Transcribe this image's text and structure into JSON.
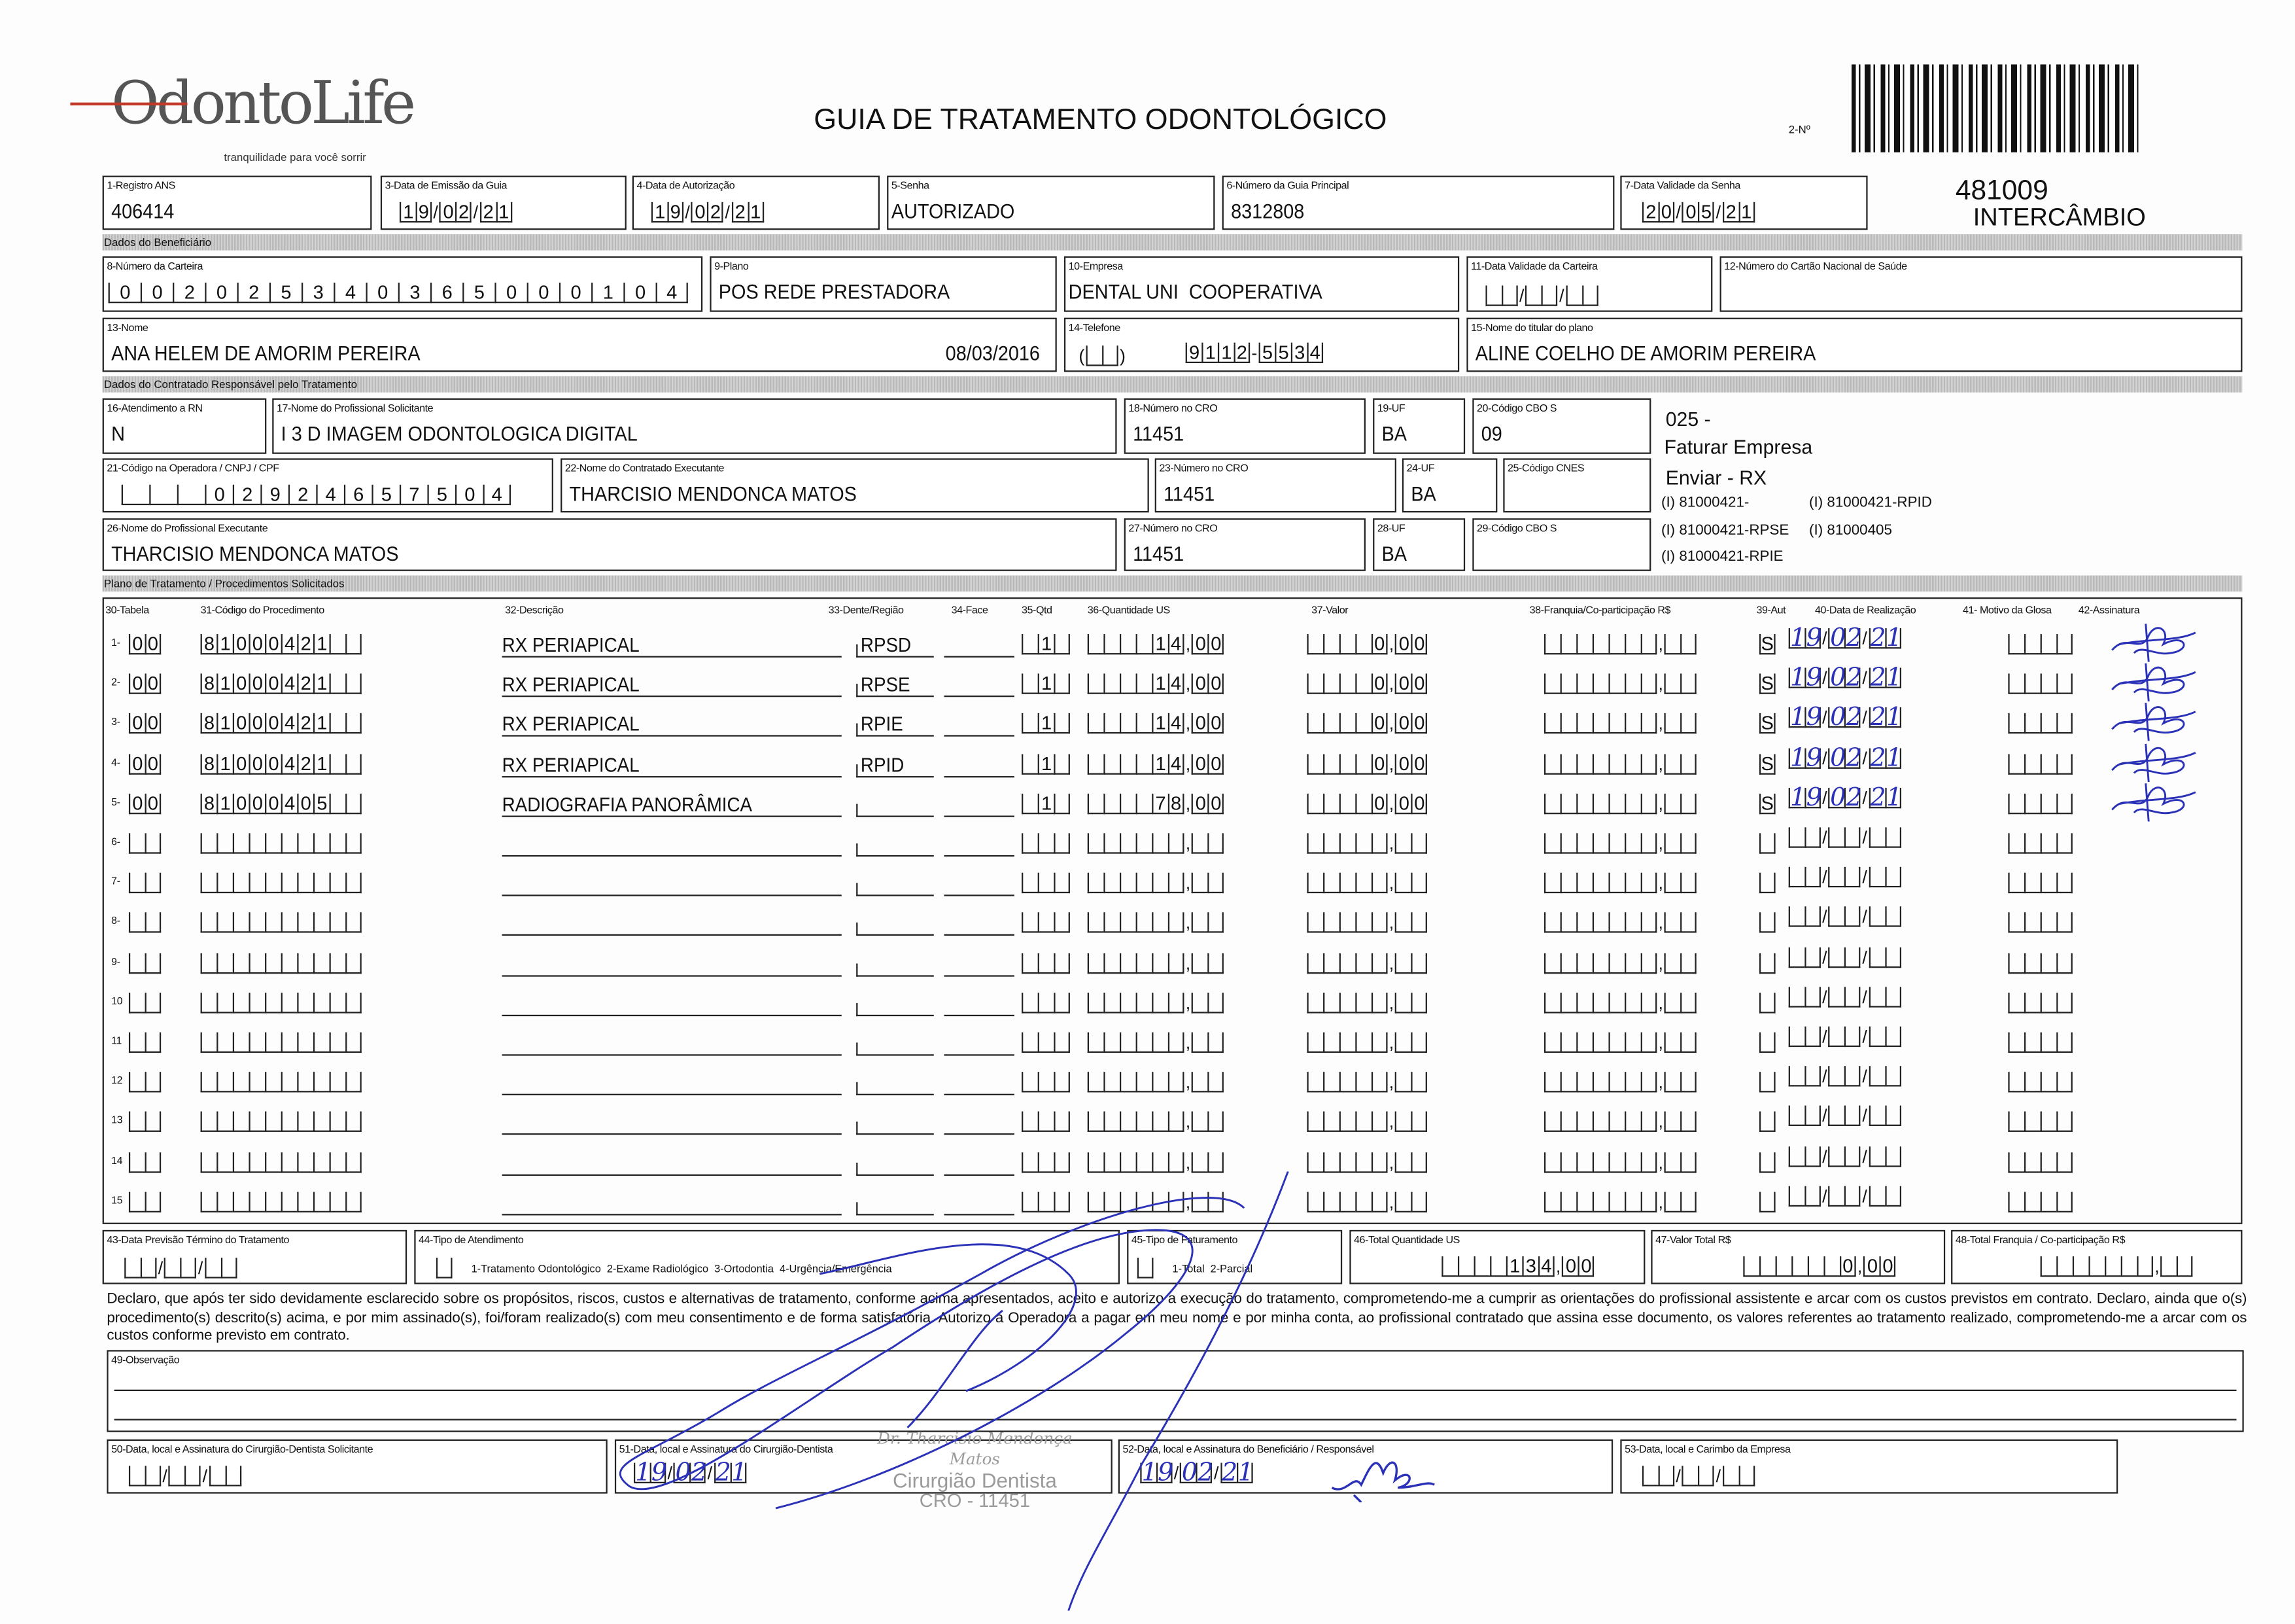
{
  "header": {
    "logo_text": "OdontoLife",
    "logo_tagline": "tranquilidade para você sorrir",
    "title": "GUIA DE TRATAMENTO ODONTOLÓGICO",
    "numero_label": "2-Nº",
    "side_code": "481009",
    "side_label": "INTERCÂMBIO"
  },
  "guia": {
    "registro_ans": {
      "label": "1-Registro ANS",
      "value": "406414"
    },
    "data_emissao": {
      "label": "3-Data de Emissão da Guia",
      "value": "19/02/21"
    },
    "data_autorizacao": {
      "label": "4-Data de Autorização",
      "value": "19/02/21"
    },
    "senha": {
      "label": "5-Senha",
      "value": "AUTORIZADO"
    },
    "guia_principal": {
      "label": "6-Número da Guia Principal",
      "value": "8312808"
    },
    "validade_senha": {
      "label": "7-Data Validade da Senha",
      "value": "20/05/21"
    }
  },
  "beneficiario": {
    "section": "Dados do Beneficiário",
    "carteira": {
      "label": "8-Número da Carteira",
      "value": "002025340365000104"
    },
    "plano": {
      "label": "9-Plano",
      "value": "POS REDE PRESTADORA"
    },
    "empresa": {
      "label": "10-Empresa",
      "value": "DENTAL UNI  COOPERATIVA"
    },
    "validade_carteira": {
      "label": "11-Data Validade da Carteira",
      "value": ""
    },
    "cns": {
      "label": "12-Número do Cartão Nacional de Saúde",
      "value": ""
    },
    "nome": {
      "label": "13-Nome",
      "value": "ANA HELEM DE AMORIM PEREIRA",
      "date": "08/03/2016"
    },
    "telefone": {
      "label": "14-Telefone",
      "ddd": "",
      "value": "9112-5534"
    },
    "titular": {
      "label": "15-Nome do titular do plano",
      "value": "ALINE COELHO DE AMORIM PEREIRA"
    }
  },
  "contratado": {
    "section": "Dados do Contratado Responsável pelo Tratamento",
    "rn": {
      "label": "16-Atendimento a RN",
      "value": "N"
    },
    "prof_solicitante": {
      "label": "17-Nome do Profissional Solicitante",
      "value": "I 3 D IMAGEM ODONTOLOGICA DIGITAL"
    },
    "cro_solicitante": {
      "label": "18-Número no CRO",
      "value": "11451"
    },
    "uf_solicitante": {
      "label": "19-UF",
      "value": "BA"
    },
    "cbo_solicitante": {
      "label": "20-Código CBO S",
      "value": "09"
    },
    "codigo_operadora": {
      "label": "21-Código na Operadora / CNPJ / CPF",
      "value": "02924657504"
    },
    "contratado_executante": {
      "label": "22-Nome do Contratado Executante",
      "value": "THARCISIO MENDONCA MATOS"
    },
    "cro_contratado": {
      "label": "23-Número no CRO",
      "value": "11451"
    },
    "uf_contratado": {
      "label": "24-UF",
      "value": "BA"
    },
    "cnes": {
      "label": "25-Código CNES",
      "value": ""
    },
    "prof_executante": {
      "label": "26-Nome do Profissional Executante",
      "value": "THARCISIO MENDONCA MATOS"
    },
    "cro_executante": {
      "label": "27-Número no CRO",
      "value": "11451"
    },
    "uf_executante": {
      "label": "28-UF",
      "value": "BA"
    },
    "cbo_executante": {
      "label": "29-Código CBO S",
      "value": ""
    },
    "notes": [
      "025 -",
      "Faturar Empresa",
      "Enviar - RX"
    ],
    "codes": [
      "(I) 81000421-",
      "(I) 81000421-RPID",
      "(I) 81000421-RPSE",
      "(I) 81000405",
      "(I) 81000421-RPIE"
    ]
  },
  "table": {
    "section": "Plano de Tratamento / Procedimentos Solicitados",
    "headers": [
      "30-Tabela",
      "31-Código do Procedimento",
      "32-Descrição",
      "33-Dente/Região",
      "34-Face",
      "35-Qtd",
      "36-Quantidade US",
      "37-Valor",
      "38-Franquia/Co-participação R$",
      "39-Aut",
      "40-Data de Realização",
      "41- Motivo da Glosa",
      "42-Assinatura"
    ],
    "rows": [
      {
        "n": "1",
        "tabela": "00",
        "codigo": "81000421",
        "descricao": "RX PERIAPICAL",
        "dente": "RPSD",
        "face": "",
        "qtd": "1",
        "qtd_us": "14,00",
        "valor": "0,00",
        "franquia": "",
        "aut": "S",
        "data": "19/02/21",
        "glosa": "",
        "signed": true
      },
      {
        "n": "2",
        "tabela": "00",
        "codigo": "81000421",
        "descricao": "RX PERIAPICAL",
        "dente": "RPSE",
        "face": "",
        "qtd": "1",
        "qtd_us": "14,00",
        "valor": "0,00",
        "franquia": "",
        "aut": "S",
        "data": "19/02/21",
        "glosa": "",
        "signed": true
      },
      {
        "n": "3",
        "tabela": "00",
        "codigo": "81000421",
        "descricao": "RX PERIAPICAL",
        "dente": "RPIE",
        "face": "",
        "qtd": "1",
        "qtd_us": "14,00",
        "valor": "0,00",
        "franquia": "",
        "aut": "S",
        "data": "19/02/21",
        "glosa": "",
        "signed": true
      },
      {
        "n": "4",
        "tabela": "00",
        "codigo": "81000421",
        "descricao": "RX PERIAPICAL",
        "dente": "RPID",
        "face": "",
        "qtd": "1",
        "qtd_us": "14,00",
        "valor": "0,00",
        "franquia": "",
        "aut": "S",
        "data": "19/02/21",
        "glosa": "",
        "signed": true
      },
      {
        "n": "5",
        "tabela": "00",
        "codigo": "81000405",
        "descricao": "RADIOGRAFIA PANORÂMICA",
        "dente": "",
        "face": "",
        "qtd": "1",
        "qtd_us": "78,00",
        "valor": "0,00",
        "franquia": "",
        "aut": "S",
        "data": "19/02/21",
        "glosa": "",
        "signed": true
      },
      {
        "n": "6"
      },
      {
        "n": "7"
      },
      {
        "n": "8"
      },
      {
        "n": "9"
      },
      {
        "n": "10"
      },
      {
        "n": "11"
      },
      {
        "n": "12"
      },
      {
        "n": "13"
      },
      {
        "n": "14"
      },
      {
        "n": "15"
      }
    ]
  },
  "totais": {
    "previsao": {
      "label": "43-Data Previsão Término do Tratamento",
      "value": ""
    },
    "tipo_atendimento": {
      "label": "44-Tipo de Atendimento",
      "value": "",
      "options": "1-Tratamento Odontológico  2-Exame Radiológico  3-Ortodontia  4-Urgência/Emergência"
    },
    "tipo_faturamento": {
      "label": "45-Tipo de Faturamento",
      "value": "",
      "options": "1-Total  2-Parcial"
    },
    "total_us": {
      "label": "46-Total Quantidade US",
      "value": "134,00"
    },
    "valor_total": {
      "label": "47-Valor Total R$",
      "value": "0,00"
    },
    "total_franquia": {
      "label": "48-Total Franquia / Co-participação R$",
      "value": ""
    }
  },
  "declaration": "Declaro, que após ter sido devidamente esclarecido sobre os propósitos, riscos, custos e alternativas de tratamento, conforme acima apresentados, aceito e autorizo a execução do tratamento, comprometendo-me a cumprir as orientações do profissional assistente e arcar com os custos previstos em contrato. Declaro, ainda que o(s) procedimento(s) descrito(s) acima, e por mim assinado(s), foi/foram realizado(s) com meu consentimento e de forma satisfatória. Autorizo a Operadora a pagar em meu nome e por minha conta, ao profissional contratado que assina esse documento, os valores referentes ao tratamento realizado, comprometendo-me a arcar com os custos conforme previsto em contrato.",
  "observacao": {
    "label": "49-Observação",
    "value": ""
  },
  "assinaturas": {
    "solicitante": {
      "label": "50-Data, local e Assinatura do Cirurgião-Dentista Solicitante",
      "value": ""
    },
    "dentista": {
      "label": "51-Data, local e Assinatura do Cirurgião-Dentista",
      "value": "19/02/21"
    },
    "beneficiario": {
      "label": "52-Data, local e Assinatura do Beneficiário / Responsável",
      "value": "19/02/21"
    },
    "empresa": {
      "label": "53-Data, local e Carimbo da Empresa",
      "value": ""
    }
  },
  "stamp": [
    "Dr. Tharcisio Mendonça Matos",
    "Cirurgião Dentista",
    "CRO - 11451"
  ],
  "colors": {
    "ink": "#2b32b8",
    "section_bar": "#c4c4c4"
  }
}
